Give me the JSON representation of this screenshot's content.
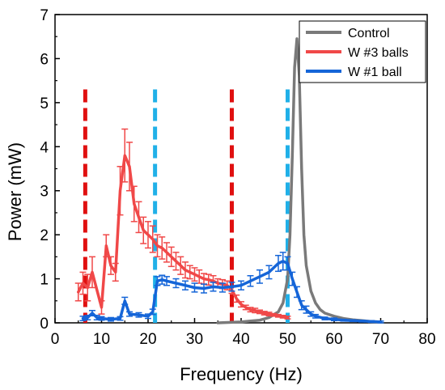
{
  "chart_data": {
    "type": "line",
    "xlabel": "Frequency (Hz)",
    "ylabel": "Power (mW)",
    "xlim": [
      0,
      80
    ],
    "ylim": [
      0,
      7
    ],
    "xticks": [
      0,
      10,
      20,
      30,
      40,
      50,
      60,
      70,
      80
    ],
    "yticks": [
      0,
      1,
      2,
      3,
      4,
      5,
      6,
      7
    ],
    "grid": false,
    "legend_position": "top-right",
    "series": [
      {
        "name": "Control",
        "color": "#7a7a7a",
        "x": [
          35,
          40,
          42,
          44,
          46,
          48,
          49,
          50,
          50.5,
          51,
          51.5,
          52,
          52.5,
          53,
          53.5,
          54,
          55,
          56,
          57,
          58,
          60,
          62,
          64,
          66,
          68,
          70
        ],
        "y": [
          0.0,
          0.02,
          0.04,
          0.06,
          0.12,
          0.25,
          0.45,
          1.0,
          2.0,
          3.8,
          5.8,
          6.45,
          5.6,
          3.5,
          2.0,
          1.3,
          0.72,
          0.45,
          0.3,
          0.22,
          0.15,
          0.1,
          0.07,
          0.05,
          0.03,
          0.02
        ]
      },
      {
        "name": "W #3 balls",
        "color": "#f04848",
        "x": [
          5,
          6,
          7,
          8,
          10,
          11,
          12,
          13,
          14,
          15,
          16,
          17,
          18,
          19,
          20,
          21,
          22,
          23,
          24,
          25,
          26,
          27,
          28,
          29,
          30,
          31,
          32,
          33,
          34,
          35,
          36,
          37,
          38,
          39,
          40,
          41,
          42,
          43,
          44,
          45,
          46,
          47,
          48,
          49,
          50
        ],
        "y": [
          0.7,
          0.9,
          0.8,
          1.15,
          0.35,
          1.75,
          1.3,
          1.15,
          3.0,
          3.8,
          3.55,
          2.7,
          2.4,
          2.1,
          2.0,
          1.9,
          1.75,
          1.7,
          1.6,
          1.5,
          1.4,
          1.3,
          1.2,
          1.15,
          1.1,
          1.05,
          1.0,
          0.98,
          0.95,
          0.9,
          0.88,
          0.85,
          0.75,
          0.55,
          0.42,
          0.35,
          0.3,
          0.28,
          0.25,
          0.22,
          0.2,
          0.18,
          0.16,
          0.14,
          0.12
        ],
        "error": [
          0.2,
          0.25,
          0.3,
          0.35,
          0.15,
          0.25,
          0.2,
          0.2,
          0.55,
          0.6,
          0.55,
          0.4,
          0.35,
          0.3,
          0.3,
          0.3,
          0.25,
          0.25,
          0.22,
          0.22,
          0.2,
          0.2,
          0.18,
          0.15,
          0.15,
          0.15,
          0.12,
          0.12,
          0.12,
          0.1,
          0.1,
          0.1,
          0.08,
          0.08,
          0.06,
          0.05,
          0.05,
          0.05,
          0.04,
          0.04,
          0.04,
          0.03,
          0.03,
          0.03,
          0.03
        ]
      },
      {
        "name": "W #1 ball",
        "color": "#1565d8",
        "x": [
          6,
          7,
          8,
          9,
          10,
          12,
          14,
          15,
          16,
          18,
          20,
          21,
          22,
          23,
          24,
          26,
          28,
          30,
          32,
          34,
          36,
          38,
          40,
          42,
          44,
          46,
          48,
          49,
          50,
          51,
          52,
          53,
          54,
          55,
          56,
          58,
          60,
          62,
          64,
          66,
          68,
          70
        ],
        "y": [
          0.1,
          0.12,
          0.22,
          0.12,
          0.1,
          0.08,
          0.1,
          0.5,
          0.2,
          0.18,
          0.15,
          0.25,
          0.95,
          0.98,
          0.95,
          0.9,
          0.85,
          0.8,
          0.78,
          0.82,
          0.8,
          0.82,
          0.85,
          0.95,
          1.05,
          1.15,
          1.35,
          1.4,
          1.35,
          1.0,
          0.7,
          0.4,
          0.3,
          0.2,
          0.15,
          0.1,
          0.08,
          0.06,
          0.05,
          0.04,
          0.03,
          0.02
        ],
        "error": [
          0.05,
          0.05,
          0.06,
          0.05,
          0.04,
          0.04,
          0.04,
          0.08,
          0.05,
          0.05,
          0.05,
          0.06,
          0.1,
          0.1,
          0.1,
          0.1,
          0.1,
          0.1,
          0.1,
          0.1,
          0.1,
          0.1,
          0.1,
          0.12,
          0.15,
          0.15,
          0.18,
          0.2,
          0.15,
          0.15,
          0.12,
          0.1,
          0.08,
          0.05,
          0.04,
          0.03,
          0.03,
          0.02,
          0.02,
          0.02,
          0.02,
          0.02
        ]
      }
    ],
    "reference_lines": [
      {
        "x": 6.5,
        "color": "#e01010"
      },
      {
        "x": 21.5,
        "color": "#20b0e8"
      },
      {
        "x": 38,
        "color": "#e01010"
      },
      {
        "x": 50,
        "color": "#20b0e8"
      }
    ]
  }
}
